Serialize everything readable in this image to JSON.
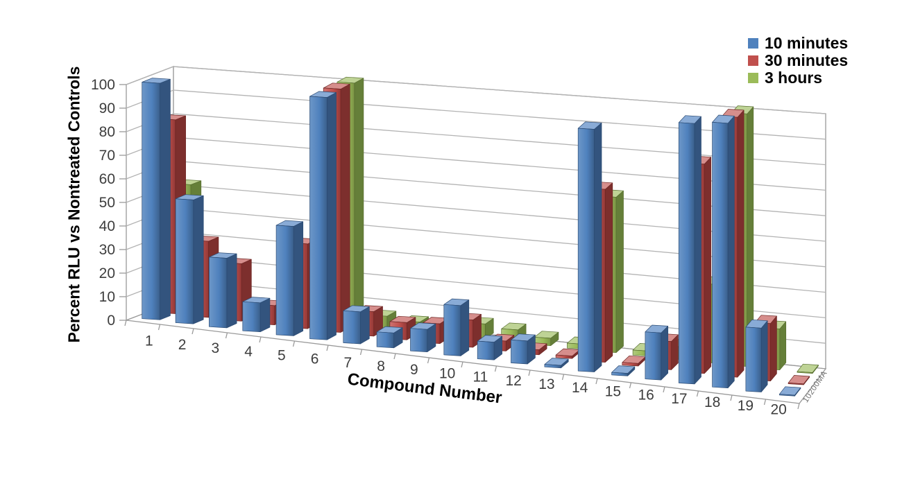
{
  "chart_data": {
    "type": "bar",
    "subtype": "3d-clustered-column",
    "title": "",
    "xlabel": "Compound Number",
    "ylabel": "Percent RLU vs Nontreated Controls",
    "ylim": [
      0,
      100
    ],
    "ytick_step": 10,
    "grid": true,
    "legend_position": "top-right",
    "categories": [
      "1",
      "2",
      "3",
      "4",
      "5",
      "6",
      "7",
      "8",
      "9",
      "10",
      "11",
      "12",
      "13",
      "14",
      "15",
      "16",
      "17",
      "18",
      "19",
      "20"
    ],
    "series": [
      {
        "name": "10 minutes",
        "color": "#4F81BD",
        "values": [
          100,
          52,
          29,
          12,
          45,
          99,
          13,
          6,
          9,
          20,
          7,
          9,
          1,
          94,
          1,
          18,
          99,
          100,
          24,
          0
        ]
      },
      {
        "name": "30 minutes",
        "color": "#C0504D",
        "values": [
          82,
          32,
          24,
          8,
          35,
          100,
          10,
          7,
          8,
          11,
          4,
          2,
          1,
          68,
          1,
          11,
          81,
          100,
          22,
          0
        ]
      },
      {
        "name": "3 hours",
        "color": "#9BBB59",
        "values": [
          52,
          14,
          5,
          4,
          10,
          100,
          5,
          4,
          4,
          6,
          5,
          3,
          2,
          62,
          2,
          5,
          31,
          99,
          16,
          0
        ]
      }
    ],
    "watermark": "10200MA"
  },
  "axes": {
    "y_title": "Percent RLU vs Nontreated Controls",
    "x_title": "Compound Number",
    "y_ticks": [
      "0",
      "10",
      "20",
      "30",
      "40",
      "50",
      "60",
      "70",
      "80",
      "90",
      "100"
    ],
    "x_ticks": [
      "1",
      "2",
      "3",
      "4",
      "5",
      "6",
      "7",
      "8",
      "9",
      "10",
      "11",
      "12",
      "13",
      "14",
      "15",
      "16",
      "17",
      "18",
      "19",
      "20"
    ]
  },
  "legend": {
    "items": [
      {
        "label": "10 minutes",
        "color": "#4F81BD"
      },
      {
        "label": "30 minutes",
        "color": "#C0504D"
      },
      {
        "label": "3 hours",
        "color": "#9BBB59"
      }
    ]
  },
  "style_colors": {
    "gridline": "#b3b3b3",
    "frame": "#999999",
    "tick_text": "#3d3d3d",
    "front": [
      "#4F81BD",
      "#C0504D",
      "#9BBB59"
    ],
    "front_light": [
      "#6D97C8",
      "#CE7371",
      "#AFC97E"
    ],
    "front_dark": [
      "#3A5F8B",
      "#933937",
      "#7A9445"
    ],
    "top": [
      "#89ABD6",
      "#D68E8C",
      "#BED395"
    ],
    "side": [
      "#33547E",
      "#7D2F2D",
      "#657F39"
    ],
    "edge": [
      "#2A4A73",
      "#6E2624",
      "#586F30"
    ]
  }
}
